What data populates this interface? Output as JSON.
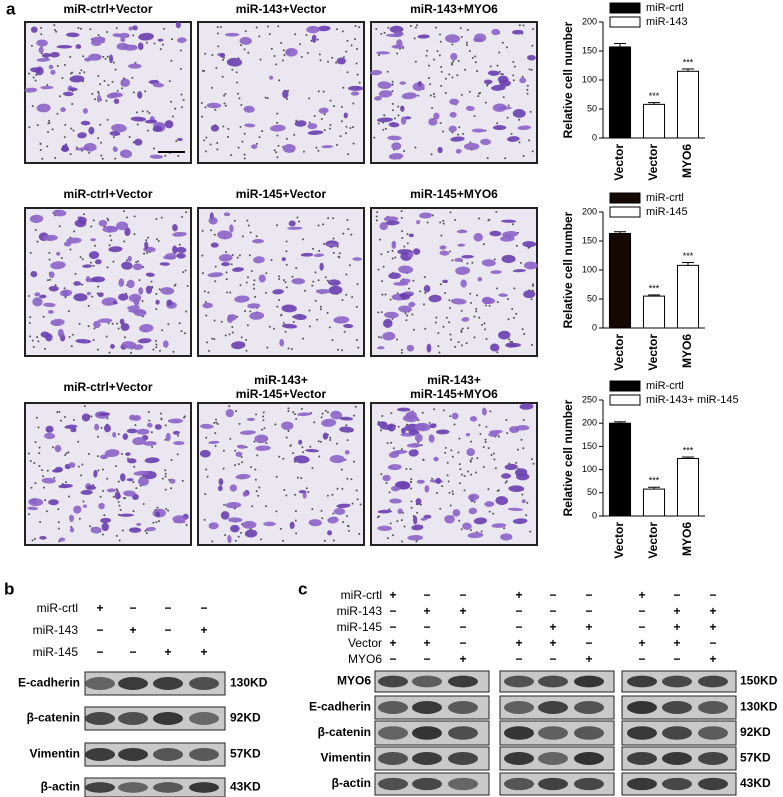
{
  "panel_labels": [
    "a",
    "b",
    "c"
  ],
  "panel_a": {
    "rows": [
      {
        "titles": [
          [
            "miR-ctrl+Vector"
          ],
          [
            "miR-143+Vector"
          ],
          [
            "miR-143+MYO6"
          ]
        ]
      },
      {
        "titles": [
          [
            "miR-ctrl+Vector"
          ],
          [
            "miR-145+Vector"
          ],
          [
            "miR-145+MYO6"
          ]
        ]
      },
      {
        "titles": [
          [
            "miR-ctrl+Vector"
          ],
          [
            "miR-143+",
            "miR-145+Vector"
          ],
          [
            "miR-143+",
            "miR-145+MYO6"
          ]
        ]
      }
    ]
  },
  "chart_data": [
    {
      "type": "bar",
      "y_label": "Relative cell number",
      "categories": [
        "Vector",
        "Vector",
        "MYO6"
      ],
      "series": [
        {
          "name": "miR-crtl",
          "color": "#000000",
          "values": [
            157,
            null,
            null
          ],
          "errors": [
            6,
            null,
            null
          ]
        },
        {
          "name": "miR-143",
          "color": "#ffffff",
          "values": [
            null,
            58,
            115
          ],
          "errors": [
            null,
            3,
            4
          ]
        }
      ],
      "significance": [
        null,
        "***",
        "***"
      ],
      "ylim": [
        0,
        200
      ],
      "yticks": [
        0,
        50,
        100,
        150,
        200
      ]
    },
    {
      "type": "bar",
      "y_label": "Relative cell number",
      "categories": [
        "Vector",
        "Vector",
        "MYO6"
      ],
      "series": [
        {
          "name": "miR-crtl",
          "color": "#140800",
          "values": [
            163,
            null,
            null
          ],
          "errors": [
            3,
            null,
            null
          ]
        },
        {
          "name": "miR-145",
          "color": "#ffffff",
          "values": [
            null,
            55,
            108
          ],
          "errors": [
            null,
            2,
            5
          ]
        }
      ],
      "significance": [
        null,
        "***",
        "***"
      ],
      "ylim": [
        0,
        200
      ],
      "yticks": [
        0,
        50,
        100,
        150,
        200
      ]
    },
    {
      "type": "bar",
      "y_label": "Relative cell number",
      "categories": [
        "Vector",
        "Vector",
        "MYO6"
      ],
      "series": [
        {
          "name": "miR-crtl",
          "color": "#000000",
          "values": [
            200,
            null,
            null
          ],
          "errors": [
            3,
            null,
            null
          ]
        },
        {
          "name": "miR-143+ miR-145",
          "color": "#ffffff",
          "values": [
            null,
            58,
            124
          ],
          "errors": [
            null,
            4,
            3
          ]
        }
      ],
      "significance": [
        null,
        "***",
        "***"
      ],
      "ylim": [
        0,
        250
      ],
      "yticks": [
        0,
        50,
        100,
        150,
        200,
        250
      ]
    }
  ],
  "panel_b": {
    "conditions": [
      {
        "label": "miR-crtl",
        "marks": [
          "+",
          "−",
          "−",
          "−"
        ]
      },
      {
        "label": "miR-143",
        "marks": [
          "−",
          "+",
          "−",
          "+"
        ]
      },
      {
        "label": "miR-145",
        "marks": [
          "−",
          "−",
          "+",
          "+"
        ]
      }
    ],
    "blots": [
      {
        "protein": "E-cadherin",
        "size": "130KD"
      },
      {
        "protein": "β-catenin",
        "size": "92KD"
      },
      {
        "protein": "Vimentin",
        "size": "57KD"
      },
      {
        "protein": "β-actin",
        "size": "43KD"
      }
    ]
  },
  "panel_c": {
    "conditions": [
      {
        "label": "miR-crtl",
        "marks": [
          "+",
          "−",
          "−",
          "+",
          "−",
          "−",
          "+",
          "−",
          "−"
        ]
      },
      {
        "label": "miR-143",
        "marks": [
          "−",
          "+",
          "+",
          "−",
          "−",
          "−",
          "−",
          "+",
          "+"
        ]
      },
      {
        "label": "miR-145",
        "marks": [
          "−",
          "−",
          "−",
          "−",
          "+",
          "+",
          "−",
          "+",
          "+"
        ]
      },
      {
        "label": "Vector",
        "marks": [
          "+",
          "+",
          "−",
          "+",
          "+",
          "−",
          "+",
          "+",
          "−"
        ]
      },
      {
        "label": "MYO6",
        "marks": [
          "−",
          "−",
          "+",
          "−",
          "−",
          "+",
          "−",
          "−",
          "+"
        ]
      }
    ],
    "blots": [
      {
        "protein": "MYO6",
        "size": "150KD"
      },
      {
        "protein": "E-cadherin",
        "size": "130KD"
      },
      {
        "protein": "β-catenin",
        "size": "92KD"
      },
      {
        "protein": "Vimentin",
        "size": "57KD"
      },
      {
        "protein": "β-actin",
        "size": "43KD"
      }
    ]
  }
}
